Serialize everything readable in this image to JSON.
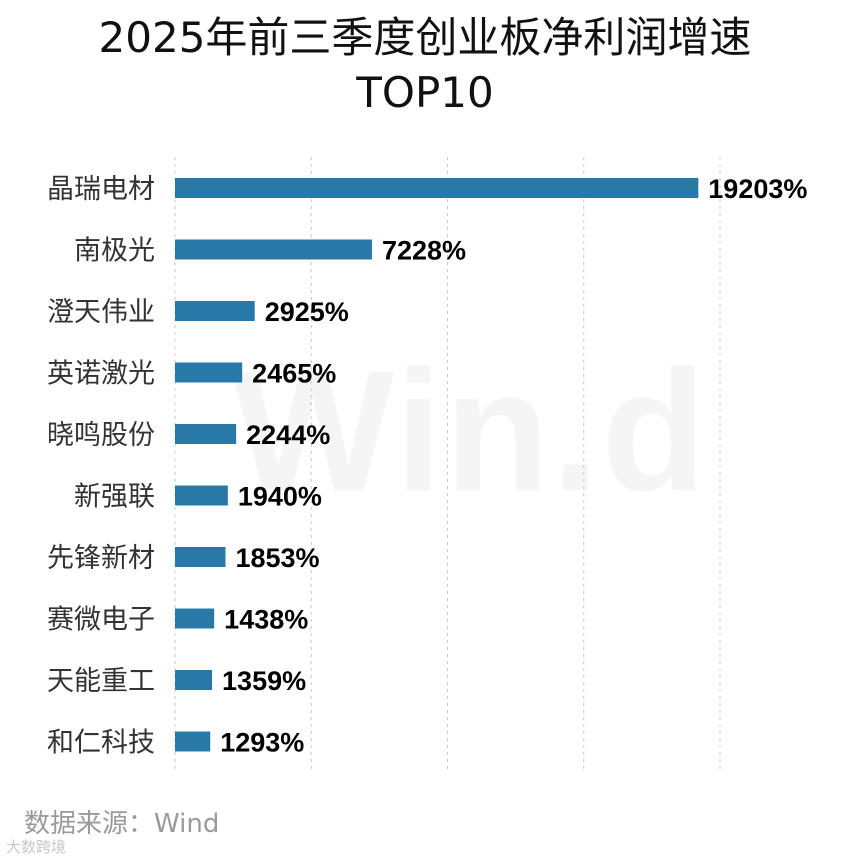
{
  "title_line1": "2025年前三季度创业板净利润增速",
  "title_line2": "TOP10",
  "source": "数据来源：Wind",
  "watermark": "Win.d",
  "corner_logo": "大数跨境",
  "colors": {
    "bar": "#2878a8",
    "label": "#000000",
    "category": "#333333",
    "grid": "#c9c9c9"
  },
  "chart_data": {
    "type": "bar",
    "orientation": "horizontal",
    "categories": [
      "晶瑞电材",
      "南极光",
      "澄天伟业",
      "英诺激光",
      "晓鸣股份",
      "新强联",
      "先锋新材",
      "赛微电子",
      "天能重工",
      "和仁科技"
    ],
    "values": [
      19203,
      7228,
      2925,
      2465,
      2244,
      1940,
      1853,
      1438,
      1359,
      1293
    ],
    "value_labels": [
      "19203%",
      "7228%",
      "2925%",
      "2465%",
      "2244%",
      "1940%",
      "1853%",
      "1438%",
      "1359%",
      "1293%"
    ],
    "unit": "%",
    "xlim": [
      0,
      20000
    ],
    "grid": "vertical dashed",
    "legend": "none"
  }
}
